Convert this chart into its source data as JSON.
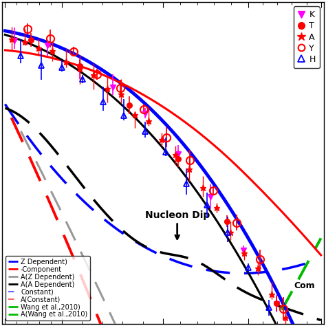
{
  "background_color": "#ffffff",
  "annotation_nucleon": "Nucleon Dip",
  "annotation_com": "Com",
  "legend1_labels": [
    "K",
    "T",
    "A",
    "Y",
    "H"
  ],
  "legend2_labels": [
    "Z Dependent)",
    "-Component",
    "A(Z Dependent)",
    "A(A Dependent)",
    "Constant)",
    "A(Constant)",
    "Wang et al.,2010)",
    "A(Wang et al.,2010)"
  ]
}
